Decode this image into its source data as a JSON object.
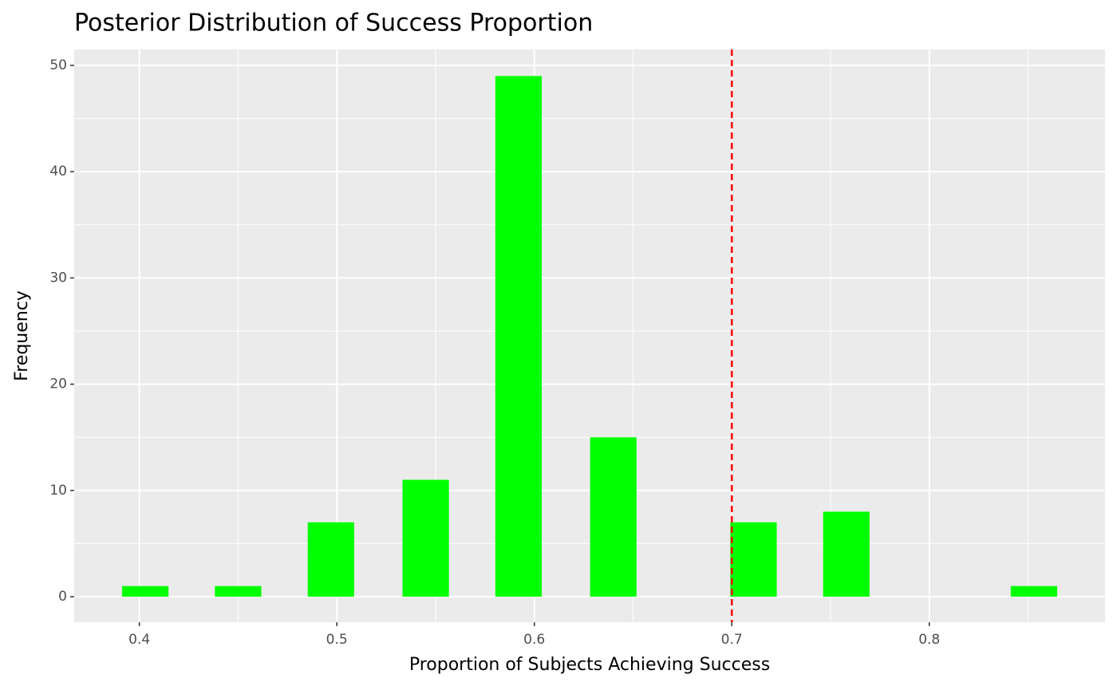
{
  "chart_data": {
    "type": "bar",
    "title": "Posterior Distribution of Success Proportion",
    "x_label": "Proportion of Subjects Achieving Success",
    "y_label": "Frequency",
    "x": [
      0.403,
      0.45,
      0.497,
      0.545,
      0.592,
      0.64,
      0.711,
      0.758,
      0.853
    ],
    "values": [
      1,
      1,
      7,
      11,
      49,
      15,
      7,
      8,
      1
    ],
    "color": "#00ff00",
    "xlim": [
      0.367,
      0.889
    ],
    "xticks": [
      0.4,
      0.5,
      0.6,
      0.7,
      0.8
    ],
    "ylim": [
      -2.4,
      51.5
    ],
    "yticks": [
      0,
      10,
      20,
      30,
      40,
      50
    ],
    "vline": {
      "x": 0.7,
      "color": "#ff0000"
    },
    "grid": true
  }
}
